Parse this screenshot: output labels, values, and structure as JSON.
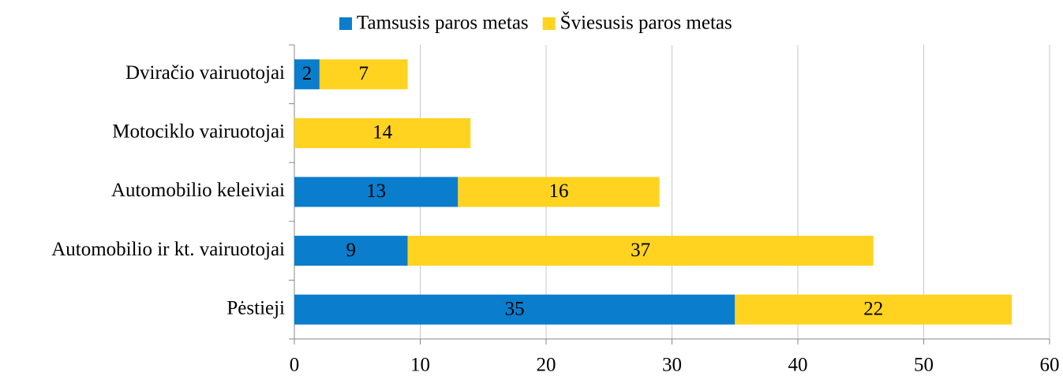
{
  "chart_data": {
    "type": "stacked_barh",
    "categories": [
      "Dviračio vairuotojai",
      "Motociklo vairuotojai",
      "Automobilio keleiviai",
      "Automobilio ir kt. vairuotojai",
      "Pėstieji"
    ],
    "series": [
      {
        "name": "Tamsusis paros metas",
        "color": "#0b7dcd",
        "values": [
          2,
          null,
          13,
          9,
          35
        ]
      },
      {
        "name": "Šviesusis paros metas",
        "color": "#ffd320",
        "values": [
          7,
          14,
          16,
          37,
          22
        ]
      }
    ],
    "xlim": [
      0,
      60
    ],
    "xticks": [
      0,
      10,
      20,
      30,
      40,
      50,
      60
    ],
    "grid": true,
    "legend": "top"
  }
}
